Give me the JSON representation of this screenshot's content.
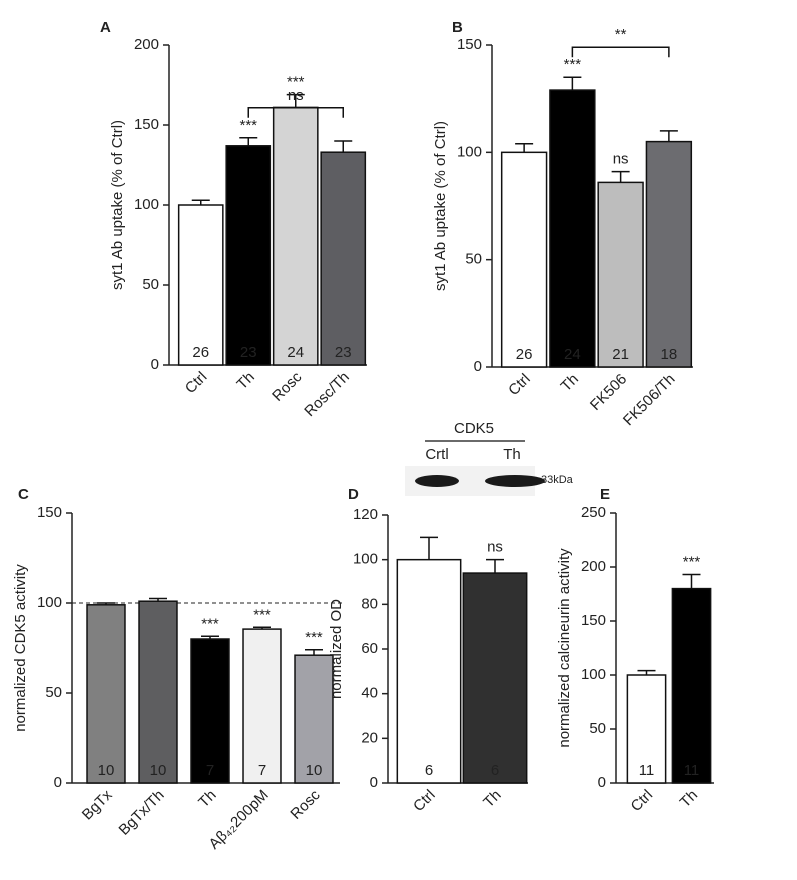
{
  "chart_data": [
    {
      "panel": "A",
      "type": "bar",
      "ylabel": "syt1 Ab uptake (% of Ctrl)",
      "categories": [
        "Ctrl",
        "Th",
        "Rosc",
        "Rosc/Th"
      ],
      "values": [
        100,
        137,
        161,
        133
      ],
      "errors": [
        3,
        5,
        8,
        7
      ],
      "counts": [
        26,
        23,
        24,
        23
      ],
      "colors": [
        "#ffffff",
        "#000000",
        "#d4d4d4",
        "#5e5e62"
      ],
      "ylim": [
        0,
        200
      ],
      "yticks": [
        0,
        50,
        100,
        150,
        200
      ],
      "annotations": [
        {
          "text": "***",
          "category": "Th"
        },
        {
          "text": "***",
          "category": "Rosc"
        }
      ],
      "brackets": [
        {
          "text": "ns",
          "from": "Th",
          "to": "Rosc/Th"
        }
      ]
    },
    {
      "panel": "B",
      "type": "bar",
      "ylabel": "syt1 Ab uptake (% of Ctrl)",
      "categories": [
        "Ctrl",
        "Th",
        "FK506",
        "FK506/Th"
      ],
      "values": [
        100,
        129,
        86,
        105
      ],
      "errors": [
        4,
        6,
        5,
        5
      ],
      "counts": [
        26,
        24,
        21,
        18
      ],
      "colors": [
        "#ffffff",
        "#000000",
        "#bdbdbd",
        "#6c6c70"
      ],
      "ylim": [
        0,
        150
      ],
      "yticks": [
        0,
        50,
        100,
        150
      ],
      "annotations": [
        {
          "text": "***",
          "category": "Th"
        },
        {
          "text": "ns",
          "category": "FK506"
        }
      ],
      "brackets": [
        {
          "text": "**",
          "from": "Th",
          "to": "FK506/Th"
        }
      ]
    },
    {
      "panel": "C",
      "type": "bar",
      "ylabel": "normalized CDK5 activity",
      "categories": [
        "BgTx",
        "BgTx/Th",
        "Th",
        "Aβ₄₂200pM",
        "Rosc"
      ],
      "values": [
        99,
        101,
        80,
        85.5,
        71
      ],
      "errors": [
        1,
        1.5,
        1.5,
        1,
        3
      ],
      "counts": [
        10,
        10,
        7,
        7,
        10
      ],
      "colors": [
        "#808080",
        "#5e5e60",
        "#000000",
        "#f0f0f0",
        "#a2a2a8"
      ],
      "ylim": [
        0,
        150
      ],
      "yticks": [
        0,
        50,
        100,
        150
      ],
      "reference_line": 100,
      "annotations": [
        {
          "text": "***",
          "category": "Th"
        },
        {
          "text": "***",
          "category": "Aβ₄₂200pM"
        },
        {
          "text": "***",
          "category": "Rosc"
        }
      ],
      "brackets": []
    },
    {
      "panel": "D",
      "type": "bar",
      "ylabel": "normalized OD",
      "categories": [
        "Ctrl",
        "Th"
      ],
      "values": [
        100,
        94
      ],
      "errors": [
        10,
        6
      ],
      "counts": [
        6,
        6
      ],
      "colors": [
        "#ffffff",
        "#303030"
      ],
      "ylim": [
        0,
        120
      ],
      "yticks": [
        0,
        20,
        40,
        60,
        80,
        100,
        120
      ],
      "annotations": [
        {
          "text": "ns",
          "category": "Th"
        }
      ],
      "brackets": [],
      "blot": {
        "title": "CDK5",
        "lanes": [
          "Crtl",
          "Th"
        ],
        "size": "33kDa"
      }
    },
    {
      "panel": "E",
      "type": "bar",
      "ylabel": "normalized calcineurin activity",
      "categories": [
        "Ctrl",
        "Th"
      ],
      "values": [
        100,
        180
      ],
      "errors": [
        4,
        13
      ],
      "counts": [
        11,
        11
      ],
      "colors": [
        "#ffffff",
        "#000000"
      ],
      "ylim": [
        0,
        250
      ],
      "yticks": [
        0,
        50,
        100,
        150,
        200,
        250
      ],
      "annotations": [
        {
          "text": "***",
          "category": "Th"
        }
      ],
      "brackets": []
    }
  ]
}
